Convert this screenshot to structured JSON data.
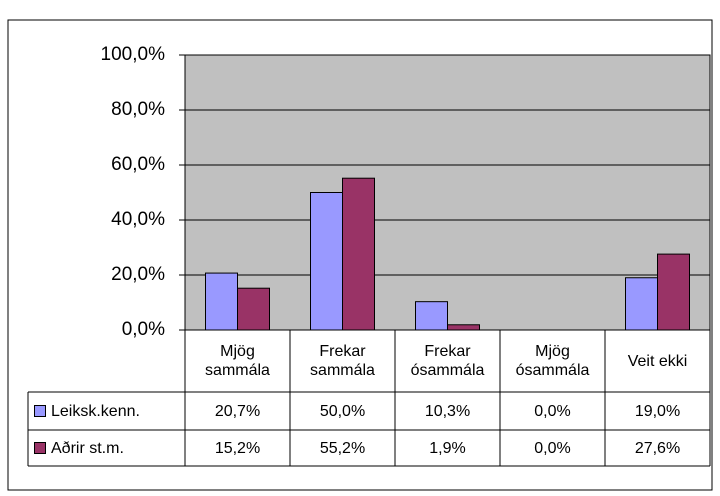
{
  "chart_data": {
    "type": "bar",
    "categories": [
      "Mjög sammála",
      "Frekar sammála",
      "Frekar ósammála",
      "Mjög ósammála",
      "Veit ekki"
    ],
    "series": [
      {
        "name": "Leiksk.kenn.",
        "color": "#9999ff",
        "values": [
          20.7,
          50.0,
          10.3,
          0.0,
          19.0
        ],
        "value_labels": [
          "20,7%",
          "50,0%",
          "10,3%",
          "0,0%",
          "19,0%"
        ]
      },
      {
        "name": "Aðrir st.m.",
        "color": "#993366",
        "values": [
          15.2,
          55.2,
          1.9,
          0.0,
          27.6
        ],
        "value_labels": [
          "15,2%",
          "55,2%",
          "1,9%",
          "0,0%",
          "27,6%"
        ]
      }
    ],
    "ylim": [
      0,
      100
    ],
    "yticks": [
      {
        "value": 0,
        "label": "0,0%"
      },
      {
        "value": 20,
        "label": "20,0%"
      },
      {
        "value": 40,
        "label": "40,0%"
      },
      {
        "value": 60,
        "label": "60,0%"
      },
      {
        "value": 80,
        "label": "80,0%"
      },
      {
        "value": 100,
        "label": "100,0%"
      }
    ],
    "grid": true,
    "plot_background": "#c0c0c0"
  }
}
